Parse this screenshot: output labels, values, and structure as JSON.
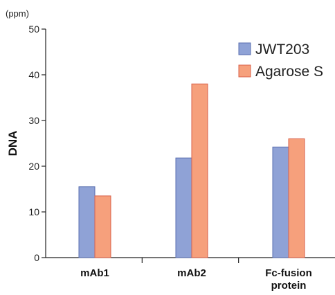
{
  "chart_data": {
    "type": "bar",
    "title": "",
    "ylabel": "DNA",
    "yunit": "(ppm)",
    "ylim": [
      0,
      50
    ],
    "yticks": [
      0,
      10,
      20,
      30,
      40,
      50
    ],
    "grid": false,
    "legend_position": "top-right",
    "categories": [
      [
        "mAb1"
      ],
      [
        "mAb2"
      ],
      [
        "Fc-fusion",
        "protein"
      ]
    ],
    "series": [
      {
        "name": "JWT203",
        "color": "#8fa2d6",
        "values": [
          15.5,
          21.8,
          24.2
        ]
      },
      {
        "name": "Agarose S",
        "color": "#f6a07c",
        "values": [
          13.5,
          38.0,
          26.0
        ]
      }
    ]
  }
}
